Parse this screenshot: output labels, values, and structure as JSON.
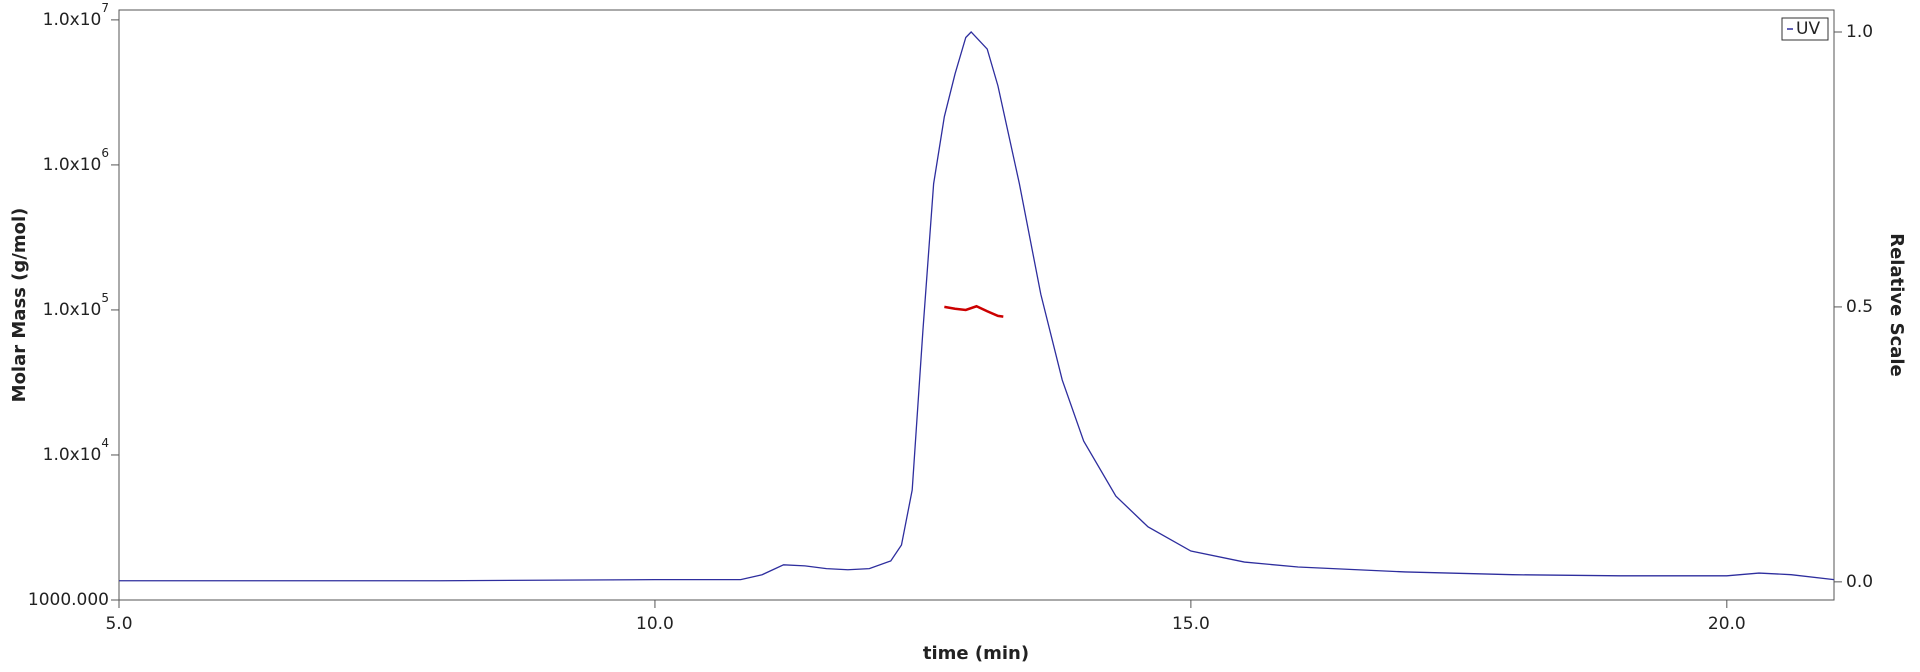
{
  "chart_data": {
    "type": "line",
    "x_label": "time (min)",
    "y_label": "Molar Mass (g/mol)",
    "y2_label": "Relative Scale",
    "xlim": [
      5,
      21
    ],
    "ylim": [
      1000,
      11700000
    ],
    "y2lim": [
      -0.033,
      1.04
    ],
    "yscale": "log",
    "xticks": [
      {
        "value": 5,
        "label": "5.0"
      },
      {
        "value": 10,
        "label": "10.0"
      },
      {
        "value": 15,
        "label": "15.0"
      },
      {
        "value": 20,
        "label": "20.0"
      }
    ],
    "yticks": [
      {
        "value": 1000,
        "label": "1000.000"
      },
      {
        "value": 10000,
        "label": "1.0x10",
        "sup": "4"
      },
      {
        "value": 100000,
        "label": "1.0x10",
        "sup": "5"
      },
      {
        "value": 1000000,
        "label": "1.0x10",
        "sup": "6"
      },
      {
        "value": 10000000,
        "label": "1.0x10",
        "sup": "7"
      }
    ],
    "y2ticks": [
      {
        "value": 0,
        "label": "0.0"
      },
      {
        "value": 0.5,
        "label": "0.5"
      },
      {
        "value": 1,
        "label": "1.0"
      }
    ],
    "legend": "top-right",
    "series": [
      {
        "name": "UV",
        "color": "#2e2e9e",
        "axis": "y2",
        "x": [
          5.0,
          8.0,
          10.0,
          10.8,
          11.0,
          11.2,
          11.4,
          11.6,
          11.8,
          12.0,
          12.2,
          12.3,
          12.4,
          12.5,
          12.6,
          12.7,
          12.8,
          12.9,
          12.95,
          13.1,
          13.2,
          13.4,
          13.6,
          13.8,
          14.0,
          14.3,
          14.6,
          15.0,
          15.5,
          16.0,
          17.0,
          18.0,
          19.0,
          20.0,
          20.3,
          20.6,
          21.0
        ],
        "values": [
          0.002,
          0.002,
          0.004,
          0.004,
          0.013,
          0.031,
          0.029,
          0.024,
          0.022,
          0.024,
          0.038,
          0.067,
          0.167,
          0.457,
          0.724,
          0.846,
          0.924,
          0.99,
          1.0,
          0.969,
          0.902,
          0.724,
          0.523,
          0.367,
          0.256,
          0.156,
          0.1,
          0.056,
          0.036,
          0.027,
          0.018,
          0.013,
          0.011,
          0.011,
          0.016,
          0.013,
          0.004
        ]
      },
      {
        "color": "#cc0000",
        "x": [
          12.7,
          12.8,
          12.9,
          13.0,
          13.1,
          13.2,
          13.25
        ],
        "values": [
          105000,
          102000,
          100000,
          106000,
          98000,
          91000,
          90000
        ]
      }
    ]
  }
}
